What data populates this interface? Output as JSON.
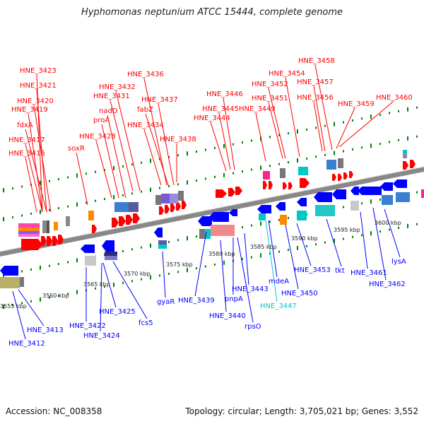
{
  "title": "Hyphomonas neptunium ATCC 15444, complete genome",
  "footer": {
    "accession": "Accession: NC_008358",
    "topology": "Topology: circular; Length: 3,705,021 bp; Genes: 3,552"
  },
  "colors": {
    "forward": "#ff0000",
    "reverse": "#0000ff",
    "highlight": "#00c8c8",
    "backbone": "#888888",
    "tick": "#008000"
  },
  "kbp_ticks": [
    "3555 kbp",
    "3560 kbp",
    "3565 kbp",
    "3570 kbp",
    "3575 kbp",
    "3580 kbp",
    "3585 kbp",
    "3590 kbp",
    "3595 kbp",
    "3600 kbp"
  ],
  "top_labels": [
    "HNE_3423",
    "HNE_3421",
    "HNE_3420",
    "HNE_3419",
    "fdxA",
    "HNE_3417",
    "HNE_3416",
    "soxR",
    "HNE_3428",
    "proA",
    "nadD",
    "HNE_3431",
    "HNE_3432",
    "HNE_3436",
    "HNE_3437",
    "fabZ",
    "HNE_3434",
    "HNE_3438",
    "HNE_3446",
    "HNE_3445",
    "HNE_3444",
    "HNE_3449",
    "HNE_3451",
    "HNE_3452",
    "HNE_3454",
    "HNE_3457",
    "HNE_3456",
    "HNE_3458",
    "HNE_3459",
    "HNE_3460"
  ],
  "bottom_labels": [
    "HNE_3413",
    "HNE_3412",
    "HNE_3422",
    "HNE_3424",
    "HNE_3425",
    "fcs5",
    "gyaR",
    "HNE_3439",
    "HNE_3440",
    "pnpA",
    "HNE_3443",
    "rpsO",
    "mdeA",
    "HNE_3447",
    "HNE_3450",
    "HNE_3453",
    "tkt",
    "HNE_3461",
    "HNE_3462",
    "lysA"
  ]
}
